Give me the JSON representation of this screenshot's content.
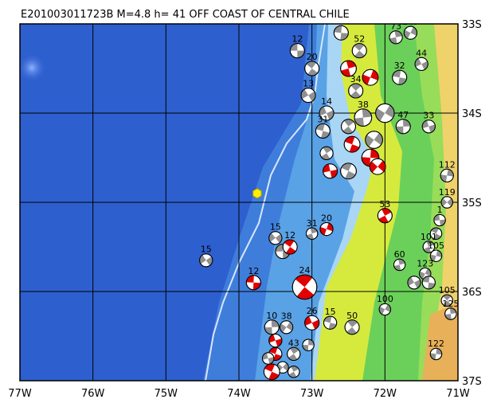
{
  "map": {
    "title": "E201003011723B  M=4.8  h=  41  OFF COAST OF CENTRAL CHILE",
    "lon_range": [
      -77,
      -71
    ],
    "lat_range": [
      -37,
      -33
    ],
    "lon_labels": [
      "77W",
      "76W",
      "75W",
      "74W",
      "73W",
      "72W",
      "71W"
    ],
    "lat_labels": [
      "33S",
      "34S",
      "35S",
      "36S",
      "37S"
    ],
    "colors": {
      "deep_ocean": "#2e5fcf",
      "shelf": "#5aa2e6",
      "coast_shelf": "#a9d6f5",
      "lowland": "#d6ea3e",
      "highland": "#6bd05a",
      "mountain": "#f0d26a",
      "compression": "#e00000",
      "other_mechanism": "#909090",
      "epicenter": "#ffef00",
      "trench_line": "#d8e6ff"
    },
    "epicenter": {
      "lon": -73.75,
      "lat": -34.9,
      "icon": "yellow-hexagon-epicenter"
    },
    "events": [
      {
        "lon": -73.2,
        "lat": -33.3,
        "depth": "12",
        "mag": 1.0,
        "color": "gray"
      },
      {
        "lon": -73.0,
        "lat": -33.5,
        "depth": "20",
        "mag": 1.0,
        "color": "gray"
      },
      {
        "lon": -72.5,
        "lat": -33.5,
        "depth": "",
        "mag": 1.1,
        "color": "red"
      },
      {
        "lon": -72.2,
        "lat": -33.6,
        "depth": "",
        "mag": 1.1,
        "color": "red"
      },
      {
        "lon": -73.05,
        "lat": -33.8,
        "depth": "13",
        "mag": 1.0,
        "color": "gray"
      },
      {
        "lon": -72.6,
        "lat": -33.1,
        "depth": "25",
        "mag": 1.0,
        "color": "gray"
      },
      {
        "lon": -72.35,
        "lat": -33.3,
        "depth": "52",
        "mag": 1.0,
        "color": "gray"
      },
      {
        "lon": -71.85,
        "lat": -33.15,
        "depth": "73",
        "mag": 0.9,
        "color": "gray"
      },
      {
        "lon": -71.65,
        "lat": -33.1,
        "depth": "149",
        "mag": 0.9,
        "color": "gray"
      },
      {
        "lon": -71.5,
        "lat": -33.45,
        "depth": "44",
        "mag": 0.9,
        "color": "gray"
      },
      {
        "lon": -71.8,
        "lat": -33.6,
        "depth": "32",
        "mag": 1.0,
        "color": "gray"
      },
      {
        "lon": -72.4,
        "lat": -33.75,
        "depth": "34",
        "mag": 1.0,
        "color": "gray"
      },
      {
        "lon": -72.3,
        "lat": -34.05,
        "depth": "38",
        "mag": 1.2,
        "color": "gray"
      },
      {
        "lon": -72.0,
        "lat": -34.0,
        "depth": "",
        "mag": 1.3,
        "color": "gray"
      },
      {
        "lon": -72.8,
        "lat": -34.0,
        "depth": "14",
        "mag": 1.0,
        "color": "gray"
      },
      {
        "lon": -72.85,
        "lat": -34.2,
        "depth": "31",
        "mag": 1.0,
        "color": "gray"
      },
      {
        "lon": -72.5,
        "lat": -34.15,
        "depth": "",
        "mag": 1.0,
        "color": "gray"
      },
      {
        "lon": -71.75,
        "lat": -34.15,
        "depth": "47",
        "mag": 1.0,
        "color": "gray"
      },
      {
        "lon": -72.15,
        "lat": -34.3,
        "depth": "",
        "mag": 1.2,
        "color": "gray"
      },
      {
        "lon": -71.4,
        "lat": -34.15,
        "depth": "33",
        "mag": 0.9,
        "color": "gray"
      },
      {
        "lon": -72.45,
        "lat": -34.35,
        "depth": "",
        "mag": 1.1,
        "color": "red"
      },
      {
        "lon": -72.8,
        "lat": -34.45,
        "depth": "",
        "mag": 0.9,
        "color": "gray"
      },
      {
        "lon": -72.2,
        "lat": -34.5,
        "depth": "",
        "mag": 1.2,
        "color": "red"
      },
      {
        "lon": -72.1,
        "lat": -34.6,
        "depth": "",
        "mag": 1.1,
        "color": "red"
      },
      {
        "lon": -72.75,
        "lat": -34.65,
        "depth": "",
        "mag": 1.0,
        "color": "red"
      },
      {
        "lon": -72.5,
        "lat": -34.65,
        "depth": "",
        "mag": 1.1,
        "color": "gray"
      },
      {
        "lon": -72.0,
        "lat": -35.15,
        "depth": "53",
        "mag": 1.0,
        "color": "red"
      },
      {
        "lon": -71.15,
        "lat": -34.7,
        "depth": "112",
        "mag": 0.9,
        "color": "gray"
      },
      {
        "lon": -71.15,
        "lat": -35.0,
        "depth": "119",
        "mag": 0.8,
        "color": "gray"
      },
      {
        "lon": -71.25,
        "lat": -35.2,
        "depth": "1",
        "mag": 0.8,
        "color": "gray"
      },
      {
        "lon": -71.3,
        "lat": -35.35,
        "depth": "",
        "mag": 0.8,
        "color": "gray"
      },
      {
        "lon": -71.4,
        "lat": -35.5,
        "depth": "101",
        "mag": 0.8,
        "color": "gray"
      },
      {
        "lon": -71.3,
        "lat": -35.6,
        "depth": "105",
        "mag": 0.8,
        "color": "gray"
      },
      {
        "lon": -73.5,
        "lat": -35.4,
        "depth": "15",
        "mag": 0.9,
        "color": "gray"
      },
      {
        "lon": -73.4,
        "lat": -35.55,
        "depth": "",
        "mag": 1.0,
        "color": "gray"
      },
      {
        "lon": -73.3,
        "lat": -35.5,
        "depth": "12",
        "mag": 1.0,
        "color": "red"
      },
      {
        "lon": -73.0,
        "lat": -35.35,
        "depth": "31",
        "mag": 0.8,
        "color": "gray"
      },
      {
        "lon": -72.8,
        "lat": -35.3,
        "depth": "20",
        "mag": 0.9,
        "color": "red"
      },
      {
        "lon": -74.45,
        "lat": -35.65,
        "depth": "15",
        "mag": 0.9,
        "color": "gray"
      },
      {
        "lon": -73.8,
        "lat": -35.9,
        "depth": "12",
        "mag": 1.0,
        "color": "red"
      },
      {
        "lon": -73.1,
        "lat": -35.95,
        "depth": "24",
        "mag": 1.7,
        "color": "red"
      },
      {
        "lon": -71.8,
        "lat": -35.7,
        "depth": "60",
        "mag": 0.8,
        "color": "gray"
      },
      {
        "lon": -71.45,
        "lat": -35.8,
        "depth": "123",
        "mag": 0.8,
        "color": "gray"
      },
      {
        "lon": -71.6,
        "lat": -35.9,
        "depth": "",
        "mag": 0.9,
        "color": "gray"
      },
      {
        "lon": -71.4,
        "lat": -35.9,
        "depth": "",
        "mag": 0.9,
        "color": "gray"
      },
      {
        "lon": -71.15,
        "lat": -36.1,
        "depth": "105",
        "mag": 0.8,
        "color": "gray"
      },
      {
        "lon": -71.1,
        "lat": -36.25,
        "depth": "125",
        "mag": 0.8,
        "color": "gray"
      },
      {
        "lon": -72.0,
        "lat": -36.2,
        "depth": "100",
        "mag": 0.8,
        "color": "gray"
      },
      {
        "lon": -73.0,
        "lat": -36.35,
        "depth": "26",
        "mag": 1.0,
        "color": "red"
      },
      {
        "lon": -72.75,
        "lat": -36.35,
        "depth": "15",
        "mag": 0.9,
        "color": "gray"
      },
      {
        "lon": -72.45,
        "lat": -36.4,
        "depth": "50",
        "mag": 1.0,
        "color": "gray"
      },
      {
        "lon": -73.55,
        "lat": -36.4,
        "depth": "10",
        "mag": 1.0,
        "color": "gray"
      },
      {
        "lon": -73.35,
        "lat": -36.4,
        "depth": "38",
        "mag": 0.9,
        "color": "gray"
      },
      {
        "lon": -73.5,
        "lat": -36.55,
        "depth": "",
        "mag": 0.9,
        "color": "red"
      },
      {
        "lon": -73.5,
        "lat": -36.7,
        "depth": "",
        "mag": 0.9,
        "color": "red"
      },
      {
        "lon": -73.25,
        "lat": -36.7,
        "depth": "43",
        "mag": 0.9,
        "color": "gray"
      },
      {
        "lon": -73.05,
        "lat": -36.6,
        "depth": "",
        "mag": 0.8,
        "color": "gray"
      },
      {
        "lon": -73.4,
        "lat": -36.85,
        "depth": "",
        "mag": 0.8,
        "color": "gray"
      },
      {
        "lon": -73.6,
        "lat": -36.75,
        "depth": "",
        "mag": 0.8,
        "color": "gray"
      },
      {
        "lon": -73.55,
        "lat": -36.9,
        "depth": "",
        "mag": 1.1,
        "color": "red"
      },
      {
        "lon": -73.25,
        "lat": -36.9,
        "depth": "",
        "mag": 0.8,
        "color": "gray"
      },
      {
        "lon": -71.3,
        "lat": -36.7,
        "depth": "122",
        "mag": 0.8,
        "color": "gray"
      }
    ]
  }
}
